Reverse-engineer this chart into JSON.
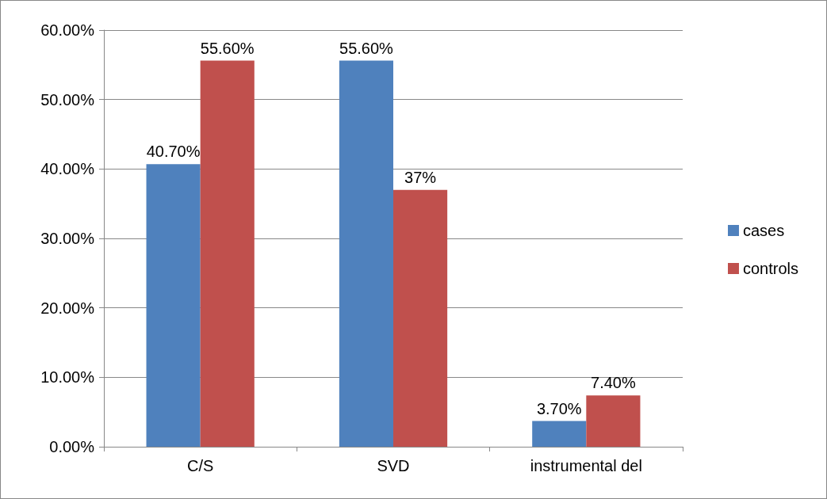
{
  "chart_data": {
    "type": "bar",
    "categories": [
      "C/S",
      "SVD",
      "instrumental del"
    ],
    "series": [
      {
        "name": "cases",
        "color": "#4f81bd",
        "values": [
          40.7,
          55.6,
          3.7
        ],
        "value_labels": [
          "40.70%",
          "55.60%",
          "3.70%"
        ]
      },
      {
        "name": "controls",
        "color": "#c0504d",
        "values": [
          55.6,
          37,
          7.4
        ],
        "value_labels": [
          "55.60%",
          "37%",
          "7.40%"
        ]
      }
    ],
    "ylim": [
      0,
      60
    ],
    "yticks": [
      {
        "value": 0,
        "label": "0.00%"
      },
      {
        "value": 10,
        "label": "10.00%"
      },
      {
        "value": 20,
        "label": "20.00%"
      },
      {
        "value": 30,
        "label": "30.00%"
      },
      {
        "value": 40,
        "label": "40.00%"
      },
      {
        "value": 50,
        "label": "50.00%"
      },
      {
        "value": 60,
        "label": "60.00%"
      }
    ],
    "grid": "y",
    "legend": "right"
  }
}
